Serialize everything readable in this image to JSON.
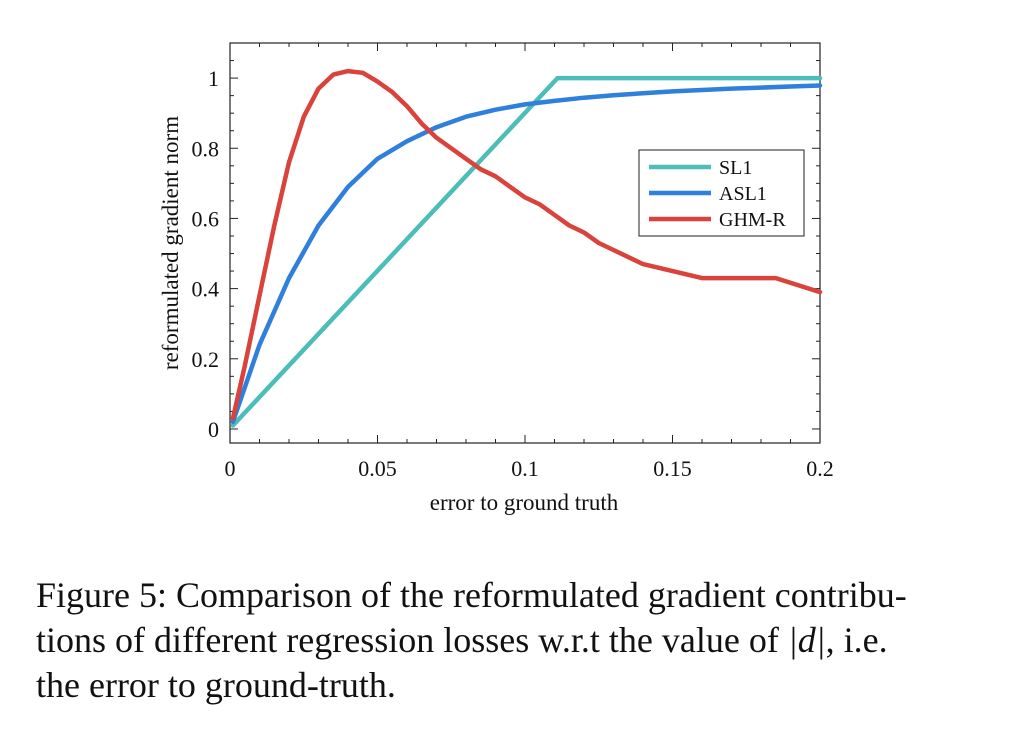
{
  "chart_data": {
    "type": "line",
    "xlabel": "error to ground truth",
    "ylabel": "reformulated gradient norm",
    "xlim": [
      0,
      0.2
    ],
    "ylim": [
      -0.04,
      1.1
    ],
    "xticks": [
      0,
      0.05,
      0.1,
      0.15,
      0.2
    ],
    "xtick_labels": [
      "0",
      "0.05",
      "0.1",
      "0.15",
      "0.2"
    ],
    "yticks": [
      0,
      0.2,
      0.4,
      0.6,
      0.8,
      1
    ],
    "ytick_labels": [
      "0",
      "0.2",
      "0.4",
      "0.6",
      "0.8",
      "1"
    ],
    "grid": false,
    "legend_position": "center-right",
    "series": [
      {
        "name": "SL1",
        "color": "#4dbdb9",
        "x": [
          0.001,
          0.111,
          0.2
        ],
        "y": [
          0.01,
          1.0,
          1.0
        ]
      },
      {
        "name": "ASL1",
        "color": "#2f7fdc",
        "x": [
          0.001,
          0.01,
          0.02,
          0.03,
          0.04,
          0.05,
          0.06,
          0.07,
          0.08,
          0.09,
          0.1,
          0.11,
          0.12,
          0.13,
          0.14,
          0.15,
          0.16,
          0.17,
          0.18,
          0.19,
          0.2
        ],
        "y": [
          0.02,
          0.24,
          0.43,
          0.58,
          0.69,
          0.77,
          0.82,
          0.86,
          0.89,
          0.91,
          0.925,
          0.935,
          0.944,
          0.951,
          0.957,
          0.962,
          0.966,
          0.97,
          0.973,
          0.976,
          0.979
        ]
      },
      {
        "name": "GHM-R",
        "color": "#d9433b",
        "x": [
          0.001,
          0.005,
          0.01,
          0.015,
          0.02,
          0.025,
          0.03,
          0.035,
          0.04,
          0.045,
          0.05,
          0.055,
          0.06,
          0.065,
          0.07,
          0.075,
          0.08,
          0.085,
          0.09,
          0.095,
          0.1,
          0.105,
          0.11,
          0.115,
          0.12,
          0.125,
          0.13,
          0.14,
          0.15,
          0.16,
          0.17,
          0.185,
          0.2
        ],
        "y": [
          0.03,
          0.18,
          0.38,
          0.58,
          0.76,
          0.89,
          0.97,
          1.01,
          1.02,
          1.015,
          0.99,
          0.96,
          0.92,
          0.87,
          0.83,
          0.8,
          0.77,
          0.74,
          0.72,
          0.69,
          0.66,
          0.64,
          0.61,
          0.58,
          0.56,
          0.53,
          0.51,
          0.47,
          0.45,
          0.43,
          0.43,
          0.43,
          0.39
        ]
      }
    ]
  },
  "caption": {
    "line1": "Figure 5: Comparison of the reformulated gradient contribu-",
    "line2_pre": "tions of different regression losses w.r.t the value of ",
    "line2_math": "|d|",
    "line2_post": ", i.e.",
    "line3": "the error to ground-truth."
  }
}
